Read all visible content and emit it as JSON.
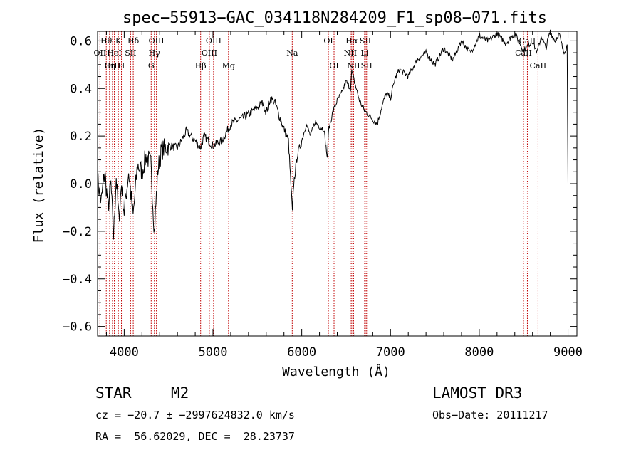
{
  "chart_data": {
    "type": "line",
    "title": "spec−55913−GAC_034118N284209_F1_sp08−071.fits",
    "xlabel": "Wavelength (Å)",
    "ylabel": "Flux (relative)",
    "xlim": [
      3700,
      9100
    ],
    "ylim": [
      -0.64,
      0.64
    ],
    "xticks": [
      4000,
      5000,
      6000,
      7000,
      8000,
      9000
    ],
    "yticks": [
      -0.6,
      -0.4,
      -0.2,
      0.0,
      0.2,
      0.4,
      0.6
    ],
    "ytick_labels": [
      "−0.6",
      "−0.4",
      "−0.2",
      "0.0",
      "0.2",
      "0.4",
      "0.6"
    ],
    "grid": false,
    "series": [
      {
        "x": [
          3700,
          3740,
          3780,
          3820,
          3850,
          3880,
          3910,
          3940,
          3970,
          4000,
          4050,
          4100,
          4150,
          4200,
          4250,
          4300,
          4340,
          4380,
          4420,
          4500,
          4600,
          4700,
          4800,
          4860,
          4900,
          5000,
          5100,
          5200,
          5300,
          5400,
          5500,
          5560,
          5600,
          5650,
          5700,
          5750,
          5800,
          5850,
          5895,
          5910,
          5950,
          6000,
          6050,
          6100,
          6150,
          6200,
          6250,
          6290,
          6300,
          6350,
          6400,
          6450,
          6500,
          6550,
          6563,
          6600,
          6650,
          6700,
          6750,
          6800,
          6850,
          6900,
          6950,
          7000,
          7050,
          7100,
          7200,
          7300,
          7400,
          7500,
          7600,
          7700,
          7800,
          7900,
          8000,
          8100,
          8200,
          8300,
          8400,
          8500,
          8550,
          8600,
          8650,
          8700,
          8750,
          8800,
          8850,
          8900,
          8950,
          8990,
          9000
        ],
        "y": [
          0.02,
          -0.08,
          0.05,
          -0.1,
          0.0,
          -0.22,
          0.03,
          -0.15,
          0.0,
          -0.12,
          0.05,
          -0.14,
          0.08,
          0.05,
          0.12,
          0.08,
          -0.2,
          0.06,
          0.14,
          0.16,
          0.15,
          0.22,
          0.18,
          0.15,
          0.2,
          0.16,
          0.18,
          0.25,
          0.27,
          0.29,
          0.32,
          0.34,
          0.3,
          0.36,
          0.34,
          0.28,
          0.23,
          0.18,
          -0.12,
          0.0,
          0.12,
          0.18,
          0.25,
          0.2,
          0.26,
          0.24,
          0.23,
          0.1,
          0.22,
          0.3,
          0.35,
          0.38,
          0.43,
          0.4,
          0.47,
          0.42,
          0.35,
          0.31,
          0.29,
          0.27,
          0.25,
          0.32,
          0.38,
          0.36,
          0.44,
          0.48,
          0.45,
          0.52,
          0.55,
          0.5,
          0.57,
          0.52,
          0.6,
          0.55,
          0.62,
          0.6,
          0.63,
          0.59,
          0.63,
          0.56,
          0.58,
          0.6,
          0.55,
          0.62,
          0.57,
          0.64,
          0.6,
          0.63,
          0.55,
          0.58,
          0.0
        ]
      }
    ],
    "lines": [
      {
        "label": "Hθ",
        "x": 3798,
        "row": 1
      },
      {
        "label": "OII",
        "x": 3727,
        "row": 2
      },
      {
        "label": "OIII",
        "x": 3868,
        "row": 3
      },
      {
        "label": "K",
        "x": 3934,
        "row": 1
      },
      {
        "label": "HeI",
        "x": 3889,
        "row": 2
      },
      {
        "label": "Hη",
        "x": 3835,
        "row": 3
      },
      {
        "label": "SII",
        "x": 4072,
        "row": 2
      },
      {
        "label": "H",
        "x": 3969,
        "row": 3
      },
      {
        "label": "Hδ",
        "x": 4102,
        "row": 1
      },
      {
        "label": "OIII",
        "x": 4363,
        "row": 1
      },
      {
        "label": "Hγ",
        "x": 4340,
        "row": 2
      },
      {
        "label": "G",
        "x": 4304,
        "row": 3
      },
      {
        "label": "Hβ",
        "x": 4861,
        "row": 3
      },
      {
        "label": "OIII",
        "x": 5007,
        "row": 1
      },
      {
        "label": "OIII",
        "x": 4959,
        "row": 2
      },
      {
        "label": "Mg",
        "x": 5175,
        "row": 3
      },
      {
        "label": "Na",
        "x": 5893,
        "row": 2
      },
      {
        "label": "OI",
        "x": 6300,
        "row": 1
      },
      {
        "label": "OI",
        "x": 6364,
        "row": 3
      },
      {
        "label": "Hα",
        "x": 6563,
        "row": 1
      },
      {
        "label": "SII",
        "x": 6717,
        "row": 1
      },
      {
        "label": "NII",
        "x": 6548,
        "row": 2
      },
      {
        "label": "Li",
        "x": 6708,
        "row": 2
      },
      {
        "label": "NII",
        "x": 6584,
        "row": 3
      },
      {
        "label": "SII",
        "x": 6731,
        "row": 3
      },
      {
        "label": "CaII",
        "x": 8542,
        "row": 1
      },
      {
        "label": "CaII",
        "x": 8498,
        "row": 2
      },
      {
        "label": "CaII",
        "x": 8662,
        "row": 3
      }
    ]
  },
  "info": {
    "class": "STAR",
    "subclass": "M2",
    "survey": "LAMOST DR3",
    "cz": "cz = −20.7 ± −2997624832.0 km/s",
    "obs_date": "Obs−Date: 20111217",
    "radec": "RA =  56.62029, DEC =  28.23737"
  }
}
